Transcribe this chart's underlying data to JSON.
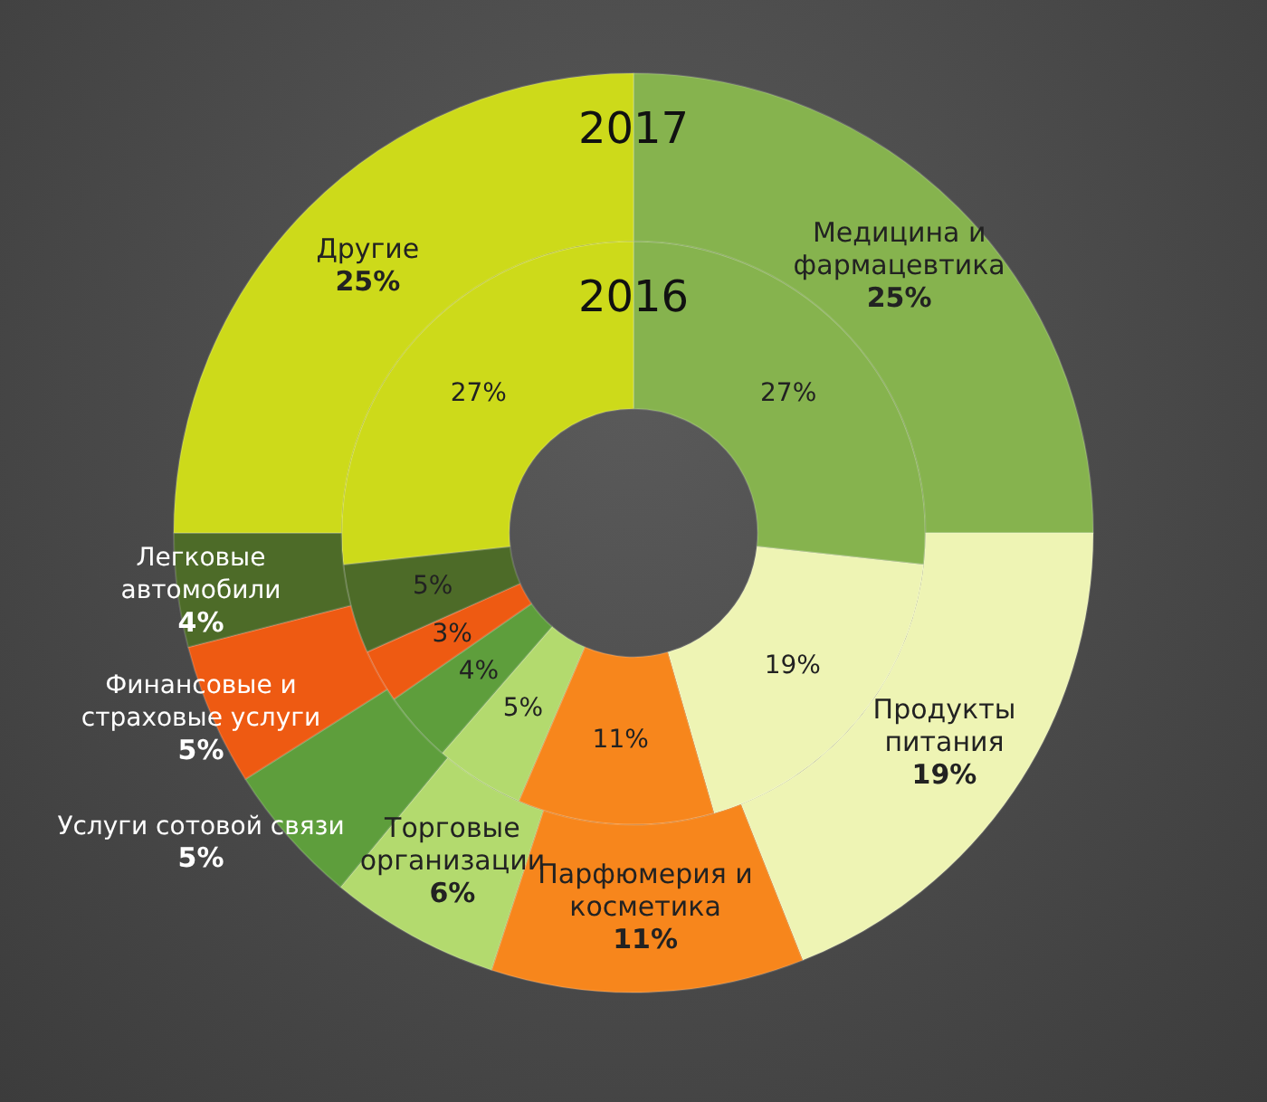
{
  "chart_data": {
    "type": "donut",
    "categories": [
      "Медицина и фармацевтика",
      "Продукты питания",
      "Парфюмерия и косметика",
      "Торговые организации",
      "Услуги сотовой связи",
      "Финансовые и страховые услуги",
      "Легковые автомобили",
      "Другие"
    ],
    "colors": [
      "#86b34e",
      "#eef4b4",
      "#f7861c",
      "#b3da6e",
      "#5e9e3c",
      "#ee5a12",
      "#4d6b28",
      "#cdda1a"
    ],
    "series": [
      {
        "name": "2017",
        "values": [
          25,
          19,
          11,
          6,
          5,
          5,
          4,
          25
        ],
        "value_labels": [
          "25%",
          "19%",
          "11%",
          "6%",
          "5%",
          "5%",
          "4%",
          "25%"
        ]
      },
      {
        "name": "2016",
        "values": [
          27,
          19,
          11,
          5,
          4,
          3,
          5,
          27
        ],
        "value_labels": [
          "27%",
          "19%",
          "11%",
          "5%",
          "4%",
          "3%",
          "5%",
          "27%"
        ]
      }
    ]
  }
}
